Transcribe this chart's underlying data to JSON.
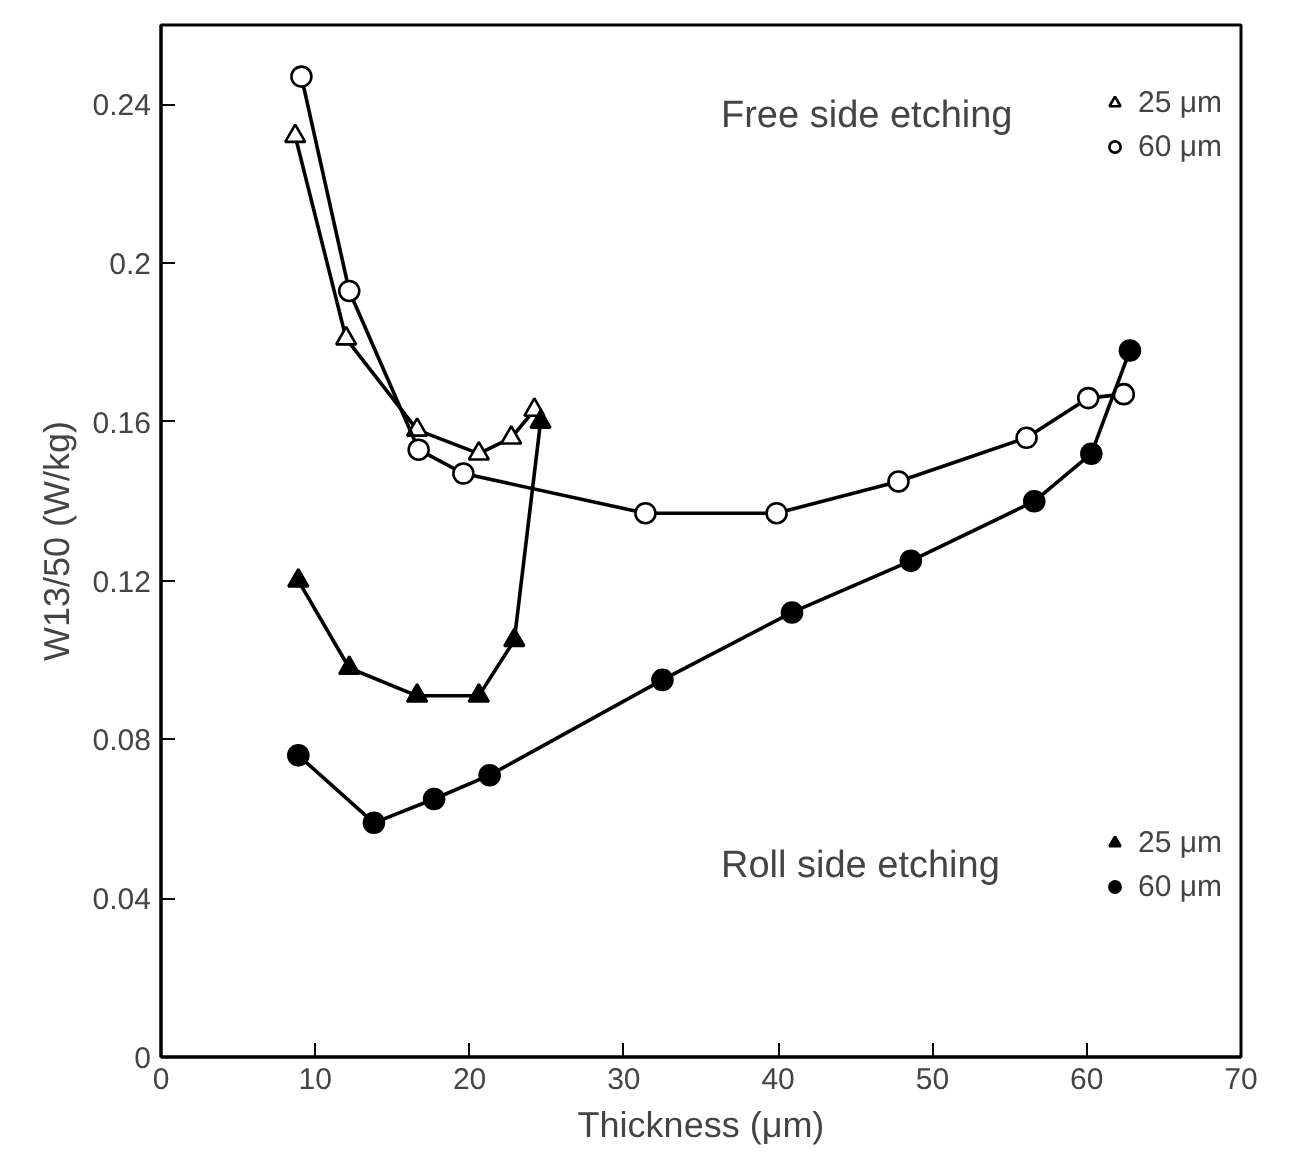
{
  "chart_data": {
    "type": "line",
    "xlabel": "Thickness (μm)",
    "ylabel": "W13/50 (W/kg)",
    "xlim": [
      0,
      70
    ],
    "xticks": [
      0,
      10,
      20,
      30,
      40,
      50,
      60,
      70
    ],
    "ylim": [
      0,
      0.26
    ],
    "yticks": [
      0,
      0.04,
      0.08,
      0.12,
      0.16,
      0.2,
      0.24
    ],
    "grid": false,
    "legend": "right",
    "line_style": "solid",
    "annotations": [
      "Free side etching",
      "Roll side etching"
    ],
    "series": [
      {
        "name": "25 μm",
        "color": "#000000",
        "marker": "triangle",
        "x": [
          8.7,
          12.0,
          16.6,
          20.6,
          22.7,
          24.2
        ],
        "values": [
          0.232,
          0.181,
          0.158,
          0.152,
          0.156,
          0.163
        ]
      },
      {
        "name": "60 μm",
        "color": "#000000",
        "marker": "circle",
        "x": [
          9.1,
          12.2,
          16.7,
          19.6,
          31.4,
          39.9,
          47.8,
          56.1,
          60.1,
          62.4
        ],
        "values": [
          0.247,
          0.193,
          0.153,
          0.147,
          0.137,
          0.137,
          0.145,
          0.156,
          0.166,
          0.167
        ]
      },
      {
        "name": "25 μm",
        "color": "#000000",
        "marker": "triangle",
        "x": [
          8.9,
          12.2,
          16.6,
          20.6,
          22.9,
          24.6
        ],
        "values": [
          0.12,
          0.098,
          0.091,
          0.091,
          0.105,
          0.16
        ]
      },
      {
        "name": "60 μm",
        "color": "#000000",
        "marker": "circle",
        "x": [
          8.9,
          13.8,
          17.7,
          21.3,
          32.5,
          40.9,
          48.6,
          56.6,
          60.3,
          62.8
        ],
        "values": [
          0.076,
          0.059,
          0.065,
          0.071,
          0.095,
          0.112,
          0.125,
          0.14,
          0.152,
          0.178
        ]
      }
    ]
  }
}
